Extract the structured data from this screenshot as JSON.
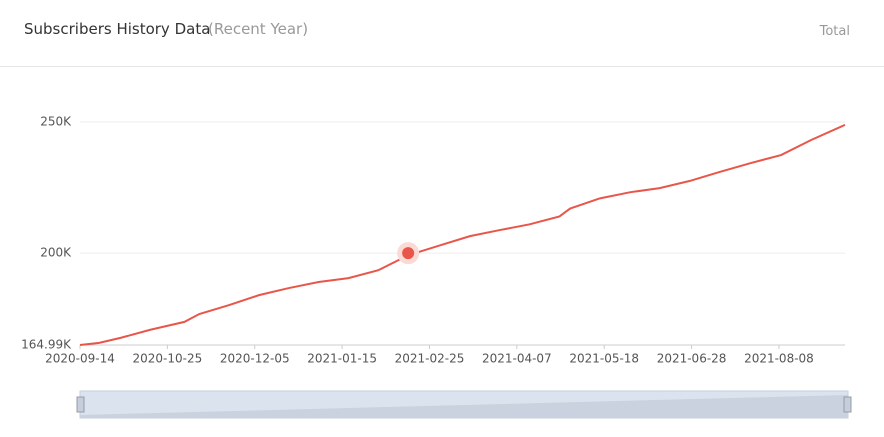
{
  "header": {
    "title": "Subscribers History Data",
    "subtitle": "(Recent Year)",
    "tab": "Total"
  },
  "chart_data": {
    "type": "line",
    "x": [
      "2020-09-14",
      "2020-09-23",
      "2020-10-03",
      "2020-10-17",
      "2020-11-02",
      "2020-11-09",
      "2020-11-23",
      "2020-12-07",
      "2020-12-21",
      "2021-01-04",
      "2021-01-18",
      "2021-02-01",
      "2021-02-15",
      "2021-03-02",
      "2021-03-16",
      "2021-03-30",
      "2021-04-13",
      "2021-04-27",
      "2021-05-02",
      "2021-05-16",
      "2021-05-30",
      "2021-06-13",
      "2021-06-27",
      "2021-07-11",
      "2021-07-26",
      "2021-08-09",
      "2021-08-23",
      "2021-09-08"
    ],
    "series": [
      {
        "name": "Subscribers",
        "color": "#e8564a",
        "values": [
          164990,
          165800,
          167700,
          170800,
          173800,
          176800,
          180200,
          184000,
          186700,
          189000,
          190500,
          193500,
          199200,
          203000,
          206500,
          208800,
          211000,
          214000,
          217000,
          220900,
          223200,
          224800,
          227500,
          230900,
          234400,
          237400,
          243100,
          248900
        ]
      }
    ],
    "xlim": [
      "2020-09-14",
      "2021-09-08"
    ],
    "xticks": [
      "2020-09-14",
      "2020-10-25",
      "2020-12-05",
      "2021-01-15",
      "2021-02-25",
      "2021-04-07",
      "2021-05-18",
      "2021-06-28",
      "2021-08-08"
    ],
    "ylim": [
      164990,
      250000
    ],
    "yticks": [
      {
        "value": 164990,
        "label": "164.99K"
      },
      {
        "value": 200000,
        "label": "200K"
      },
      {
        "value": 250000,
        "label": "250K"
      }
    ],
    "grid": true
  }
}
